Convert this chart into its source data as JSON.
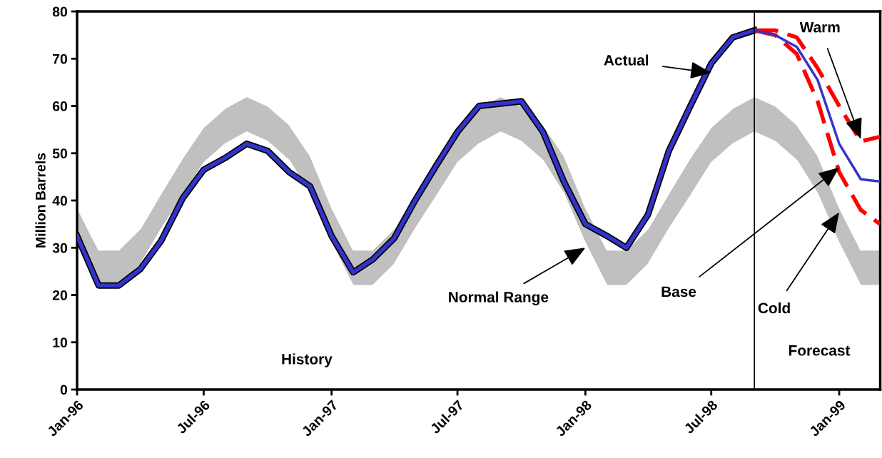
{
  "chart_data": {
    "type": "line",
    "ylabel": "Million Barrels",
    "x": [
      "1996-01",
      "1996-02",
      "1996-03",
      "1996-04",
      "1996-05",
      "1996-06",
      "1996-07",
      "1996-08",
      "1996-09",
      "1996-10",
      "1996-11",
      "1996-12",
      "1997-01",
      "1997-02",
      "1997-03",
      "1997-04",
      "1997-05",
      "1997-06",
      "1997-07",
      "1997-08",
      "1997-09",
      "1997-10",
      "1997-11",
      "1997-12",
      "1998-01",
      "1998-02",
      "1998-03",
      "1998-04",
      "1998-05",
      "1998-06",
      "1998-07",
      "1998-08",
      "1998-09",
      "1998-10",
      "1998-11",
      "1998-12",
      "1999-01",
      "1999-02",
      "1999-03"
    ],
    "series": [
      {
        "color": "#c0c0c0",
        "values": [
          null,
          null,
          null,
          null,
          null,
          null,
          null,
          null,
          null,
          null,
          null,
          null,
          null,
          null,
          null,
          null,
          null,
          null,
          null,
          null,
          null,
          null,
          null,
          null,
          null,
          null,
          null,
          null,
          null,
          null,
          null,
          null,
          null,
          null,
          null,
          null,
          null,
          null,
          null
        ],
        "upper": [
          38.5,
          29.5,
          29.5,
          34,
          41.5,
          49,
          55.5,
          59.5,
          62,
          60,
          56,
          49.5,
          38.5,
          29.5,
          29.5,
          34,
          41.5,
          49,
          55.5,
          59.5,
          62,
          60,
          56,
          49.5,
          38.5,
          29.5,
          29.5,
          34,
          41.5,
          49,
          55.5,
          59.5,
          62,
          60,
          56,
          49.5,
          38.5,
          29.5,
          29.5
        ],
        "lower": [
          31,
          22,
          22,
          26.5,
          34,
          41,
          48,
          52,
          54.5,
          52.5,
          48.5,
          41.5,
          31,
          22,
          22,
          26.5,
          34,
          41,
          48,
          52,
          54.5,
          52.5,
          48.5,
          41.5,
          31,
          22,
          22,
          26.5,
          34,
          41,
          48,
          52,
          54.5,
          52.5,
          48.5,
          41.5,
          31,
          22,
          22
        ]
      },
      {
        "color": "#3333cc",
        "line_style": "solid",
        "values": [
          32.5,
          22,
          22,
          25.5,
          31.5,
          40.5,
          46.5,
          49,
          52,
          50.5,
          46,
          43,
          32.5,
          24.8,
          27.5,
          32,
          40,
          47.5,
          54.5,
          60,
          60.5,
          61,
          54.5,
          44,
          35,
          32.5,
          30,
          37,
          50.5,
          60,
          69,
          74.5,
          76,
          null,
          null,
          null,
          null,
          null,
          null
        ]
      },
      {
        "color": "#ff0000",
        "line_style": "dashed",
        "values": [
          null,
          null,
          null,
          null,
          null,
          null,
          null,
          null,
          null,
          null,
          null,
          null,
          null,
          null,
          null,
          null,
          null,
          null,
          null,
          null,
          null,
          null,
          null,
          null,
          null,
          null,
          null,
          null,
          null,
          null,
          null,
          null,
          76,
          76,
          74.5,
          68,
          60,
          52.5,
          53.5
        ]
      },
      {
        "color": "#ff0000",
        "line_style": "dashed",
        "values": [
          null,
          null,
          null,
          null,
          null,
          null,
          null,
          null,
          null,
          null,
          null,
          null,
          null,
          null,
          null,
          null,
          null,
          null,
          null,
          null,
          null,
          null,
          null,
          null,
          null,
          null,
          null,
          null,
          null,
          null,
          null,
          null,
          76,
          75,
          71,
          61,
          46,
          38,
          35
        ]
      },
      {
        "color": "#3333cc",
        "line_style": "solid",
        "values": [
          null,
          null,
          null,
          null,
          null,
          null,
          null,
          null,
          null,
          null,
          null,
          null,
          null,
          null,
          null,
          null,
          null,
          null,
          null,
          null,
          null,
          null,
          null,
          null,
          null,
          null,
          null,
          null,
          null,
          null,
          null,
          null,
          76,
          75,
          72.5,
          65.5,
          52,
          44.5,
          44
        ]
      }
    ],
    "xlim": [
      "1996-01",
      "1999-03"
    ],
    "xticks": [
      {
        "value": "1996-01",
        "label": "Jan-96"
      },
      {
        "value": "1996-07",
        "label": "Jul-96"
      },
      {
        "value": "1997-01",
        "label": "Jan-97"
      },
      {
        "value": "1997-07",
        "label": "Jul-97"
      },
      {
        "value": "1998-01",
        "label": "Jan-98"
      },
      {
        "value": "1998-07",
        "label": "Jul-98"
      },
      {
        "value": "1999-01",
        "label": "Jan-99"
      }
    ],
    "ylim": [
      0,
      80
    ],
    "yticks": [
      0,
      10,
      20,
      30,
      40,
      50,
      60,
      70,
      80
    ],
    "ref_lines": [
      {
        "axis": "x",
        "value": "1998-09",
        "color": "#000000"
      }
    ],
    "annotations": [
      {
        "text": "Actual",
        "x": "1998-07",
        "y": 67
      },
      {
        "text": "Warm",
        "x": "1999-02",
        "y": 53
      },
      {
        "text": "Base",
        "x": "1999-01",
        "y": 47
      },
      {
        "text": "Cold",
        "x": "1999-01",
        "y": 37.5
      },
      {
        "text": "Normal Range",
        "x": "1998-01",
        "y": 30
      },
      "History",
      "Forecast"
    ],
    "grid": false,
    "legend": false,
    "marker": "none"
  }
}
